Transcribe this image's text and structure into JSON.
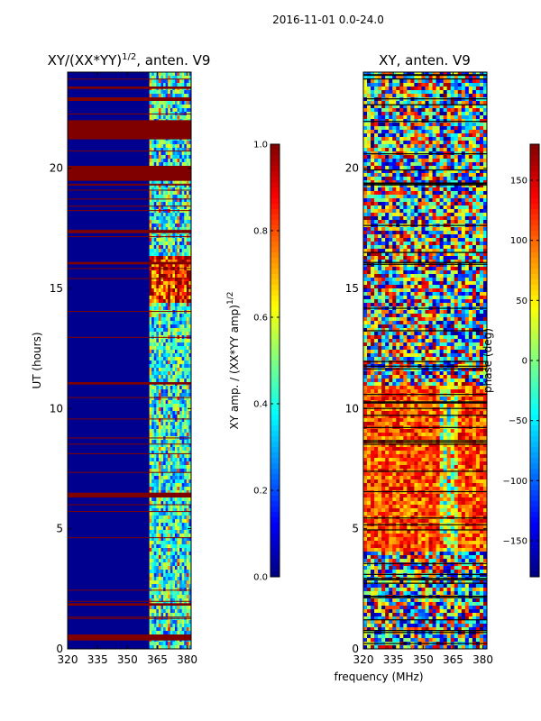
{
  "chart_data": [
    {
      "type": "heatmap",
      "suptitle": "2016-11-01 0.0-24.0",
      "title_main": "XY/(XX*YY)",
      "title_exp": "1/2",
      "title_suffix": ", anten. V9",
      "xlabel": "",
      "ylabel": "UT (hours)",
      "xlim": [
        320,
        382
      ],
      "ylim": [
        0,
        24
      ],
      "xticks": [
        320,
        335,
        350,
        365,
        380
      ],
      "yticks": [
        0,
        5,
        10,
        15,
        20
      ],
      "colorbar": {
        "label_main": "XY amp. / (XX*YY amp)",
        "label_exp": "1/2",
        "range": [
          0.0,
          1.0
        ],
        "ticks": [
          "0.0",
          "0.2",
          "0.4",
          "0.6",
          "0.8",
          "1.0"
        ],
        "tick_values": [
          0.0,
          0.2,
          0.4,
          0.6,
          0.8,
          1.0
        ]
      },
      "colormap": "jet",
      "flagged_color": "#800000",
      "background_color": "#00008f",
      "active_band_mhz": [
        361,
        382
      ]
    },
    {
      "type": "heatmap",
      "title": "XY, anten. V9",
      "xlabel": "frequency (MHz)",
      "ylabel": "",
      "xlim": [
        320,
        382
      ],
      "ylim": [
        0,
        24
      ],
      "xticks": [
        320,
        335,
        350,
        365,
        380
      ],
      "yticks": [
        0,
        5,
        10,
        15,
        20
      ],
      "colorbar": {
        "label": "phase (deg)",
        "range": [
          -180,
          180
        ],
        "ticks": [
          "150",
          "100",
          "50",
          "0",
          "−50",
          "−100",
          "−150"
        ],
        "tick_values": [
          150,
          100,
          50,
          0,
          -50,
          -100,
          -150
        ]
      },
      "colormap": "jet"
    }
  ]
}
